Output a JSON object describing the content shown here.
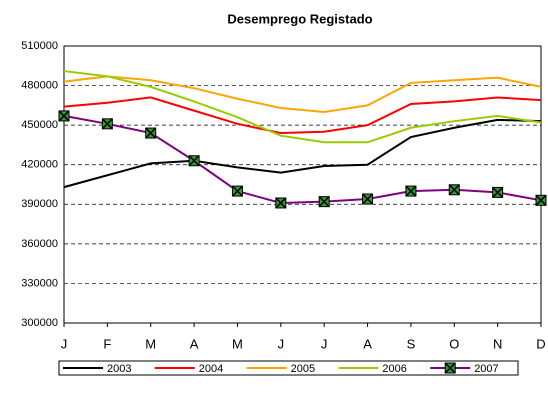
{
  "chart_data": {
    "type": "line",
    "title": "Desemprego Registado",
    "categories": [
      "J",
      "F",
      "M",
      "A",
      "M",
      "J",
      "J",
      "A",
      "S",
      "O",
      "N",
      "D"
    ],
    "series": [
      {
        "name": "2003",
        "color": "#000000",
        "values": [
          403000,
          412000,
          421000,
          423000,
          418000,
          414000,
          419000,
          420000,
          441000,
          448000,
          454000,
          453000
        ]
      },
      {
        "name": "2004",
        "color": "#ff0000",
        "values": [
          464000,
          467000,
          471000,
          461000,
          451000,
          444000,
          445000,
          450000,
          466000,
          468000,
          471000,
          469000
        ]
      },
      {
        "name": "2005",
        "color": "#ffa500",
        "values": [
          483000,
          487000,
          484000,
          478000,
          470000,
          463000,
          460000,
          465000,
          482000,
          484000,
          486000,
          479000
        ]
      },
      {
        "name": "2006",
        "color": "#99cc00",
        "values": [
          491000,
          487000,
          479000,
          468000,
          456000,
          442000,
          437000,
          437000,
          448000,
          453000,
          457000,
          452000
        ]
      },
      {
        "name": "2007",
        "color": "#800080",
        "marker": "x-square",
        "values": [
          457000,
          451000,
          444000,
          423000,
          400000,
          391000,
          392000,
          394000,
          400000,
          401000,
          399000,
          393000
        ]
      }
    ],
    "ylim": [
      300000,
      510000
    ],
    "yticks": [
      300000,
      330000,
      360000,
      390000,
      420000,
      450000,
      480000,
      510000
    ],
    "grid": true,
    "legend": "bottom"
  }
}
